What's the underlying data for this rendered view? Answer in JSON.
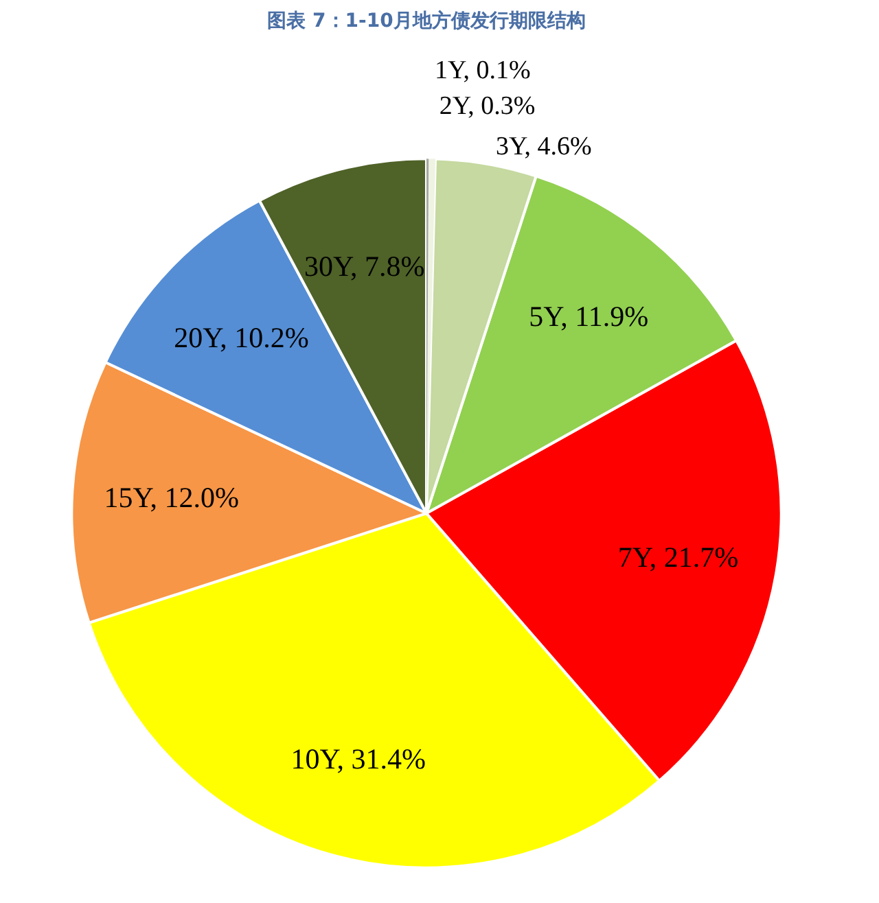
{
  "chart_data": {
    "type": "pie",
    "title": "图表 7：1-10月地方债发行期限结构",
    "categories": [
      "1Y",
      "2Y",
      "3Y",
      "5Y",
      "7Y",
      "10Y",
      "15Y",
      "20Y",
      "30Y"
    ],
    "values": [
      0.1,
      0.3,
      4.6,
      11.9,
      21.7,
      31.4,
      12.0,
      10.2,
      7.8
    ],
    "value_labels": [
      "0.1%",
      "0.3%",
      "4.6%",
      "11.9%",
      "21.7%",
      "31.4%",
      "12.0%",
      "10.2%",
      "7.8%"
    ],
    "colors": [
      "#a6a6a6",
      "#eef3e2",
      "#c5d9a0",
      "#92d050",
      "#ff0000",
      "#ffff00",
      "#f79646",
      "#558ed5",
      "#4f6228"
    ]
  }
}
